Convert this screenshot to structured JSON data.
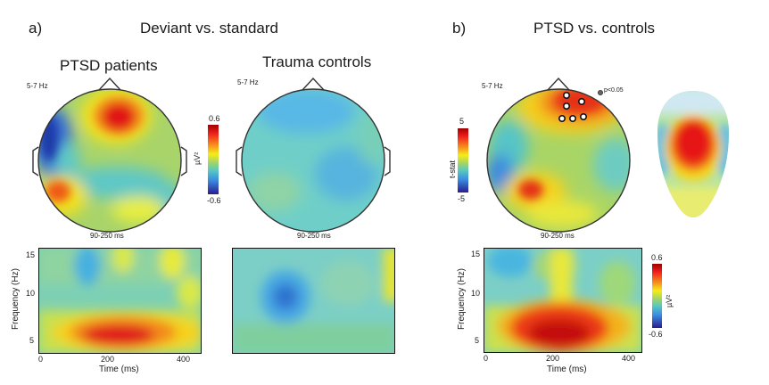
{
  "panel_a": {
    "letter": "a)",
    "title": "Deviant vs. standard",
    "left_title": "PTSD patients",
    "right_title": "Trauma controls",
    "band_left": "5-7 Hz",
    "band_right": "5-7 Hz",
    "time_left": "90-250 ms",
    "time_right": "90-250 ms",
    "colorbar": {
      "max": "0.6",
      "min": "-0.6",
      "unit": "µV²"
    },
    "tf": {
      "ylabel": "Frequency (Hz)",
      "xlabel": "Time (ms)",
      "yticks": [
        "15",
        "10",
        "5"
      ],
      "xticks": [
        "0",
        "200",
        "400"
      ]
    }
  },
  "panel_b": {
    "letter": "b)",
    "title": "PTSD vs. controls",
    "band": "5-7 Hz",
    "time": "90-250 ms",
    "sig_legend": "p<0.05",
    "colorbar": {
      "max": "5",
      "min": "-5",
      "unit": "t-stat"
    },
    "tf_colorbar": {
      "max": "0.6",
      "min": "-0.6",
      "unit": "µV²"
    },
    "tf": {
      "ylabel": "Frequency (Hz)",
      "xlabel": "Time (ms)",
      "yticks": [
        "15",
        "10",
        "5"
      ],
      "xticks": [
        "0",
        "200",
        "400"
      ]
    }
  },
  "colors": {
    "jet_low": "#2b1b8f",
    "jet_mid": "#5ec7c0",
    "jet_high": "#d40000"
  }
}
